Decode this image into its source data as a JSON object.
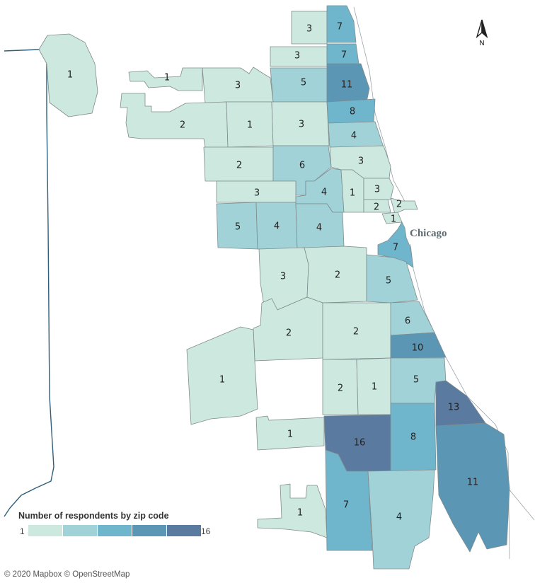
{
  "map": {
    "city_label": "Chicago",
    "north_label": "N",
    "legend": {
      "title": "Number of respondents by zip code",
      "min": "1",
      "max": "16",
      "colors": [
        "#cde8df",
        "#a0d2d8",
        "#6fb6cd",
        "#5b96b5",
        "#5b7aa0"
      ]
    },
    "attribution": "© 2020 Mapbox © OpenStreetMap",
    "zip_counts": [
      "1",
      "1",
      "3",
      "3",
      "7",
      "7",
      "5",
      "11",
      "3",
      "2",
      "1",
      "3",
      "8",
      "4",
      "2",
      "6",
      "3",
      "3",
      "4",
      "1",
      "3",
      "2",
      "2",
      "1",
      "5",
      "4",
      "4",
      "7",
      "3",
      "2",
      "5",
      "6",
      "2",
      "2",
      "10",
      "1",
      "2",
      "1",
      "5",
      "13",
      "1",
      "16",
      "8",
      "11",
      "7",
      "4",
      "1"
    ]
  }
}
